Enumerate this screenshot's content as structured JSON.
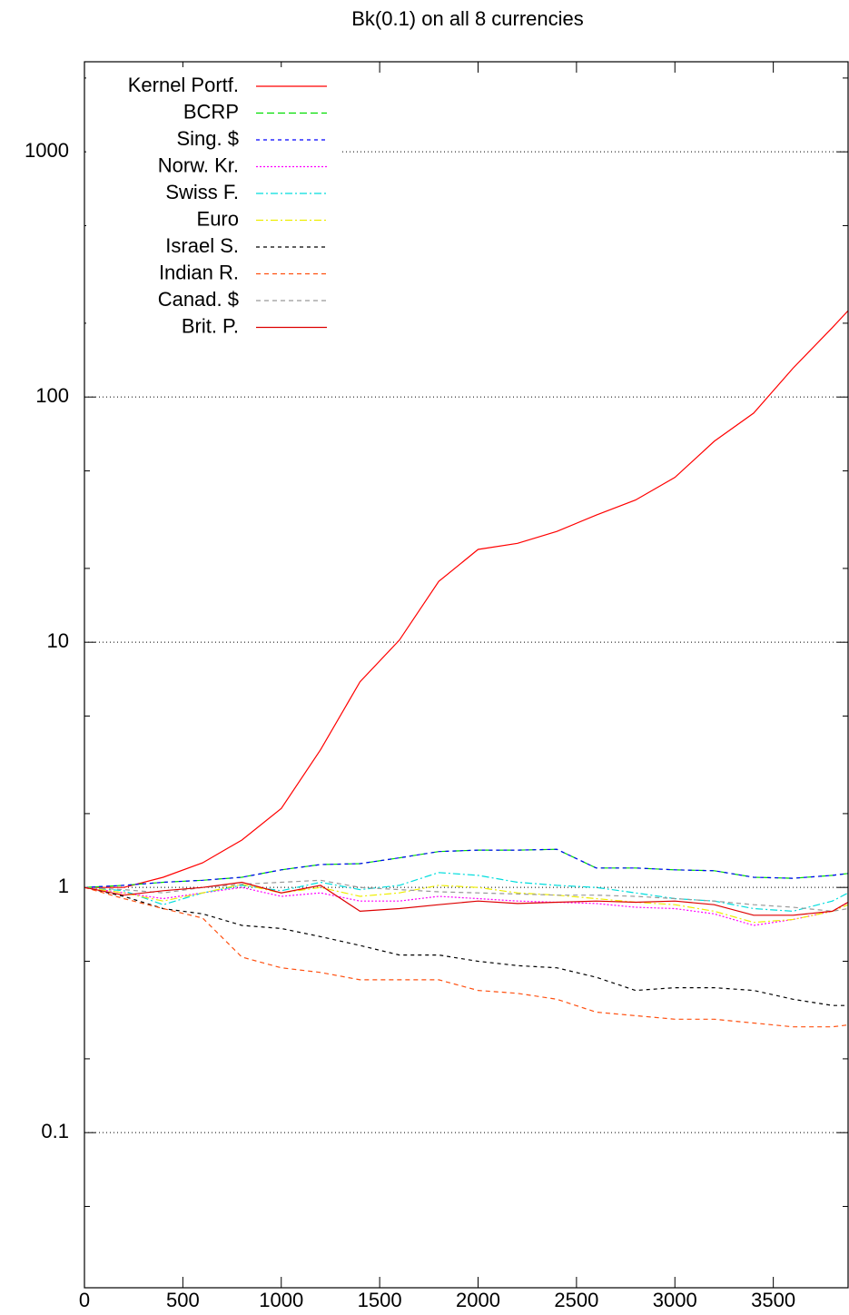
{
  "chart_data": {
    "type": "line",
    "title": "Bk(0.1) on all 8 currencies",
    "x": [
      0,
      200,
      400,
      600,
      800,
      1000,
      1200,
      1400,
      1600,
      1800,
      2000,
      2200,
      2400,
      2600,
      2800,
      3000,
      3200,
      3400,
      3600,
      3800,
      3880
    ],
    "xlim": [
      0,
      3880
    ],
    "xticks": [
      0,
      500,
      1000,
      1500,
      2000,
      2500,
      3000,
      3500
    ],
    "ylim": [
      0.0233,
      2330
    ],
    "yticks": [
      0.1,
      1,
      10,
      100,
      1000
    ],
    "yminorticks": [
      0.05,
      0.2,
      0.5,
      2,
      5,
      20,
      50,
      200,
      500,
      2000
    ],
    "ylog": true,
    "grid": true,
    "legend": "top-left",
    "series": [
      {
        "name": "Kernel Portf.",
        "color": "#ff0000",
        "dash": "none",
        "values": [
          1,
          1.0,
          1.1,
          1.26,
          1.56,
          2.1,
          3.65,
          6.9,
          10.2,
          17.7,
          23.9,
          25.3,
          28.3,
          33,
          38,
          47,
          66,
          86,
          131,
          192,
          225
        ]
      },
      {
        "name": "BCRP",
        "color": "#00dd00",
        "dash": "8,4",
        "values": [
          1,
          1.02,
          1.05,
          1.07,
          1.1,
          1.18,
          1.24,
          1.25,
          1.32,
          1.4,
          1.42,
          1.42,
          1.43,
          1.2,
          1.2,
          1.18,
          1.17,
          1.1,
          1.09,
          1.12,
          1.14
        ]
      },
      {
        "name": "Sing. $",
        "color": "#0000ff",
        "dash": "4,4",
        "values": [
          1,
          1.02,
          1.05,
          1.07,
          1.1,
          1.18,
          1.24,
          1.25,
          1.32,
          1.4,
          1.42,
          1.42,
          1.43,
          1.2,
          1.2,
          1.18,
          1.17,
          1.1,
          1.09,
          1.12,
          1.14
        ]
      },
      {
        "name": "Norw. Kr.",
        "color": "#ff00ff",
        "dash": "2,2",
        "values": [
          1,
          0.95,
          0.9,
          0.95,
          1.0,
          0.92,
          0.95,
          0.88,
          0.88,
          0.92,
          0.9,
          0.88,
          0.87,
          0.86,
          0.83,
          0.82,
          0.78,
          0.7,
          0.74,
          0.8,
          0.87
        ]
      },
      {
        "name": "Swiss F.",
        "color": "#00dddd",
        "dash": "8,3,2,3",
        "values": [
          1,
          0.97,
          0.85,
          0.95,
          1.02,
          0.97,
          1.05,
          0.98,
          1.02,
          1.15,
          1.12,
          1.05,
          1.02,
          1.0,
          0.95,
          0.9,
          0.88,
          0.82,
          0.8,
          0.88,
          0.95
        ]
      },
      {
        "name": "Euro",
        "color": "#eeee00",
        "dash": "8,3,2,3",
        "values": [
          1,
          0.95,
          0.88,
          0.95,
          1.03,
          0.95,
          1.0,
          0.92,
          0.95,
          1.02,
          1.0,
          0.95,
          0.93,
          0.9,
          0.87,
          0.85,
          0.8,
          0.72,
          0.74,
          0.8,
          0.85
        ]
      },
      {
        "name": "Israel S.",
        "color": "#000000",
        "dash": "4,4",
        "values": [
          1,
          0.92,
          0.82,
          0.78,
          0.7,
          0.68,
          0.63,
          0.58,
          0.53,
          0.53,
          0.5,
          0.48,
          0.47,
          0.43,
          0.38,
          0.39,
          0.39,
          0.38,
          0.35,
          0.33,
          0.33
        ]
      },
      {
        "name": "Indian R.",
        "color": "#ff5010",
        "dash": "5,4",
        "values": [
          1,
          0.9,
          0.82,
          0.75,
          0.52,
          0.47,
          0.45,
          0.42,
          0.42,
          0.42,
          0.38,
          0.37,
          0.35,
          0.31,
          0.3,
          0.29,
          0.29,
          0.28,
          0.27,
          0.27,
          0.275
        ]
      },
      {
        "name": "Canad. $",
        "color": "#999999",
        "dash": "5,4",
        "values": [
          1,
          0.98,
          0.95,
          1.0,
          1.03,
          1.05,
          1.07,
          1.0,
          0.98,
          0.96,
          0.95,
          0.94,
          0.93,
          0.93,
          0.92,
          0.9,
          0.88,
          0.85,
          0.83,
          0.8,
          0.82
        ]
      },
      {
        "name": "Brit. P.",
        "color": "#dd0000",
        "dash": "none",
        "values": [
          1,
          0.93,
          0.97,
          1.0,
          1.05,
          0.95,
          1.02,
          0.8,
          0.82,
          0.85,
          0.88,
          0.86,
          0.87,
          0.88,
          0.87,
          0.88,
          0.85,
          0.77,
          0.77,
          0.8,
          0.87
        ]
      }
    ]
  }
}
